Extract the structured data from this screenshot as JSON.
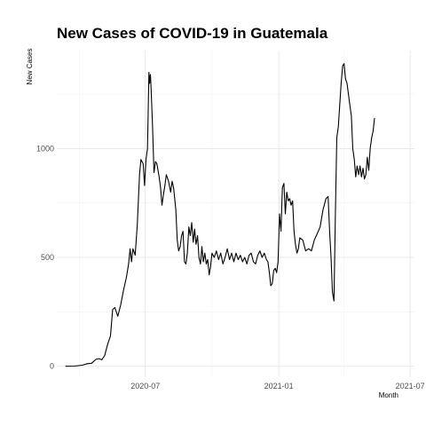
{
  "chart_data": {
    "type": "line",
    "title": "New Cases of COVID-19 in Guatemala",
    "xlabel": "Month",
    "ylabel": "New Cases",
    "grid": true,
    "legend": "none",
    "xlim": [
      "2020-03-01",
      "2021-07-07"
    ],
    "ylim": [
      -50,
      1450
    ],
    "x_ticks": [
      {
        "date": "2020-07-01",
        "label": "2020-07"
      },
      {
        "date": "2021-01-01",
        "label": "2021-01"
      },
      {
        "date": "2021-07-01",
        "label": "2021-07"
      }
    ],
    "x_minor_ticks": [
      "2020-04-01",
      "2020-10-01",
      "2021-04-01"
    ],
    "y_ticks": [
      0,
      500,
      1000
    ],
    "y_minor_ticks": [
      250,
      750,
      1250
    ],
    "series": [
      {
        "color": "#000000",
        "points": [
          [
            "2020-03-13",
            0
          ],
          [
            "2020-03-25",
            1
          ],
          [
            "2020-04-05",
            5
          ],
          [
            "2020-04-12",
            12
          ],
          [
            "2020-04-18",
            14
          ],
          [
            "2020-04-24",
            32
          ],
          [
            "2020-04-28",
            35
          ],
          [
            "2020-05-02",
            30
          ],
          [
            "2020-05-06",
            50
          ],
          [
            "2020-05-10",
            100
          ],
          [
            "2020-05-14",
            140
          ],
          [
            "2020-05-17",
            260
          ],
          [
            "2020-05-20",
            270
          ],
          [
            "2020-05-24",
            230
          ],
          [
            "2020-05-28",
            280
          ],
          [
            "2020-06-01",
            350
          ],
          [
            "2020-06-05",
            410
          ],
          [
            "2020-06-08",
            470
          ],
          [
            "2020-06-10",
            540
          ],
          [
            "2020-06-12",
            480
          ],
          [
            "2020-06-14",
            540
          ],
          [
            "2020-06-17",
            510
          ],
          [
            "2020-06-20",
            650
          ],
          [
            "2020-06-23",
            880
          ],
          [
            "2020-06-25",
            950
          ],
          [
            "2020-06-28",
            930
          ],
          [
            "2020-06-30",
            830
          ],
          [
            "2020-07-02",
            950
          ],
          [
            "2020-07-04",
            1000
          ],
          [
            "2020-07-06",
            1350
          ],
          [
            "2020-07-07",
            1300
          ],
          [
            "2020-07-08",
            1340
          ],
          [
            "2020-07-09",
            1270
          ],
          [
            "2020-07-11",
            1100
          ],
          [
            "2020-07-13",
            890
          ],
          [
            "2020-07-15",
            940
          ],
          [
            "2020-07-17",
            930
          ],
          [
            "2020-07-20",
            870
          ],
          [
            "2020-07-22",
            820
          ],
          [
            "2020-07-24",
            740
          ],
          [
            "2020-07-26",
            790
          ],
          [
            "2020-07-28",
            830
          ],
          [
            "2020-07-30",
            880
          ],
          [
            "2020-08-02",
            850
          ],
          [
            "2020-08-05",
            800
          ],
          [
            "2020-08-07",
            850
          ],
          [
            "2020-08-09",
            820
          ],
          [
            "2020-08-12",
            720
          ],
          [
            "2020-08-14",
            580
          ],
          [
            "2020-08-16",
            530
          ],
          [
            "2020-08-18",
            550
          ],
          [
            "2020-08-20",
            600
          ],
          [
            "2020-08-22",
            620
          ],
          [
            "2020-08-24",
            480
          ],
          [
            "2020-08-26",
            470
          ],
          [
            "2020-08-28",
            520
          ],
          [
            "2020-08-30",
            640
          ],
          [
            "2020-09-01",
            600
          ],
          [
            "2020-09-03",
            660
          ],
          [
            "2020-09-05",
            570
          ],
          [
            "2020-09-07",
            630
          ],
          [
            "2020-09-09",
            560
          ],
          [
            "2020-09-11",
            600
          ],
          [
            "2020-09-13",
            500
          ],
          [
            "2020-09-15",
            470
          ],
          [
            "2020-09-17",
            550
          ],
          [
            "2020-09-19",
            480
          ],
          [
            "2020-09-21",
            520
          ],
          [
            "2020-09-23",
            470
          ],
          [
            "2020-09-25",
            490
          ],
          [
            "2020-09-27",
            420
          ],
          [
            "2020-09-29",
            460
          ],
          [
            "2020-10-01",
            520
          ],
          [
            "2020-10-04",
            500
          ],
          [
            "2020-10-07",
            530
          ],
          [
            "2020-10-10",
            490
          ],
          [
            "2020-10-13",
            520
          ],
          [
            "2020-10-16",
            470
          ],
          [
            "2020-10-19",
            500
          ],
          [
            "2020-10-22",
            540
          ],
          [
            "2020-10-25",
            490
          ],
          [
            "2020-10-28",
            520
          ],
          [
            "2020-10-31",
            480
          ],
          [
            "2020-11-03",
            520
          ],
          [
            "2020-11-06",
            490
          ],
          [
            "2020-11-09",
            510
          ],
          [
            "2020-11-12",
            480
          ],
          [
            "2020-11-15",
            500
          ],
          [
            "2020-11-18",
            470
          ],
          [
            "2020-11-21",
            510
          ],
          [
            "2020-11-24",
            520
          ],
          [
            "2020-11-27",
            480
          ],
          [
            "2020-11-30",
            470
          ],
          [
            "2020-12-03",
            510
          ],
          [
            "2020-12-06",
            530
          ],
          [
            "2020-12-09",
            500
          ],
          [
            "2020-12-12",
            520
          ],
          [
            "2020-12-15",
            490
          ],
          [
            "2020-12-17",
            480
          ],
          [
            "2020-12-19",
            430
          ],
          [
            "2020-12-21",
            370
          ],
          [
            "2020-12-23",
            380
          ],
          [
            "2020-12-25",
            440
          ],
          [
            "2020-12-27",
            450
          ],
          [
            "2020-12-29",
            430
          ],
          [
            "2020-12-31",
            480
          ],
          [
            "2021-01-02",
            700
          ],
          [
            "2021-01-04",
            620
          ],
          [
            "2021-01-06",
            820
          ],
          [
            "2021-01-08",
            840
          ],
          [
            "2021-01-10",
            700
          ],
          [
            "2021-01-12",
            800
          ],
          [
            "2021-01-14",
            760
          ],
          [
            "2021-01-16",
            770
          ],
          [
            "2021-01-18",
            740
          ],
          [
            "2021-01-20",
            760
          ],
          [
            "2021-01-22",
            620
          ],
          [
            "2021-01-24",
            560
          ],
          [
            "2021-01-26",
            520
          ],
          [
            "2021-01-28",
            540
          ],
          [
            "2021-01-30",
            590
          ],
          [
            "2021-02-03",
            580
          ],
          [
            "2021-02-07",
            530
          ],
          [
            "2021-02-11",
            540
          ],
          [
            "2021-02-15",
            530
          ],
          [
            "2021-02-19",
            580
          ],
          [
            "2021-02-23",
            610
          ],
          [
            "2021-02-27",
            640
          ],
          [
            "2021-03-03",
            720
          ],
          [
            "2021-03-07",
            770
          ],
          [
            "2021-03-10",
            780
          ],
          [
            "2021-03-12",
            620
          ],
          [
            "2021-03-14",
            500
          ],
          [
            "2021-03-16",
            340
          ],
          [
            "2021-03-18",
            300
          ],
          [
            "2021-03-20",
            700
          ],
          [
            "2021-03-22",
            1050
          ],
          [
            "2021-03-24",
            1100
          ],
          [
            "2021-03-26",
            1200
          ],
          [
            "2021-03-28",
            1300
          ],
          [
            "2021-03-30",
            1380
          ],
          [
            "2021-04-01",
            1390
          ],
          [
            "2021-04-03",
            1320
          ],
          [
            "2021-04-05",
            1300
          ],
          [
            "2021-04-07",
            1250
          ],
          [
            "2021-04-09",
            1200
          ],
          [
            "2021-04-11",
            1150
          ],
          [
            "2021-04-13",
            1000
          ],
          [
            "2021-04-15",
            950
          ],
          [
            "2021-04-17",
            870
          ],
          [
            "2021-04-19",
            920
          ],
          [
            "2021-04-21",
            880
          ],
          [
            "2021-04-23",
            920
          ],
          [
            "2021-04-25",
            870
          ],
          [
            "2021-04-27",
            910
          ],
          [
            "2021-04-29",
            860
          ],
          [
            "2021-05-01",
            880
          ],
          [
            "2021-05-03",
            960
          ],
          [
            "2021-05-05",
            900
          ],
          [
            "2021-05-07",
            1000
          ],
          [
            "2021-05-09",
            1050
          ],
          [
            "2021-05-11",
            1080
          ],
          [
            "2021-05-13",
            1140
          ]
        ]
      }
    ]
  }
}
